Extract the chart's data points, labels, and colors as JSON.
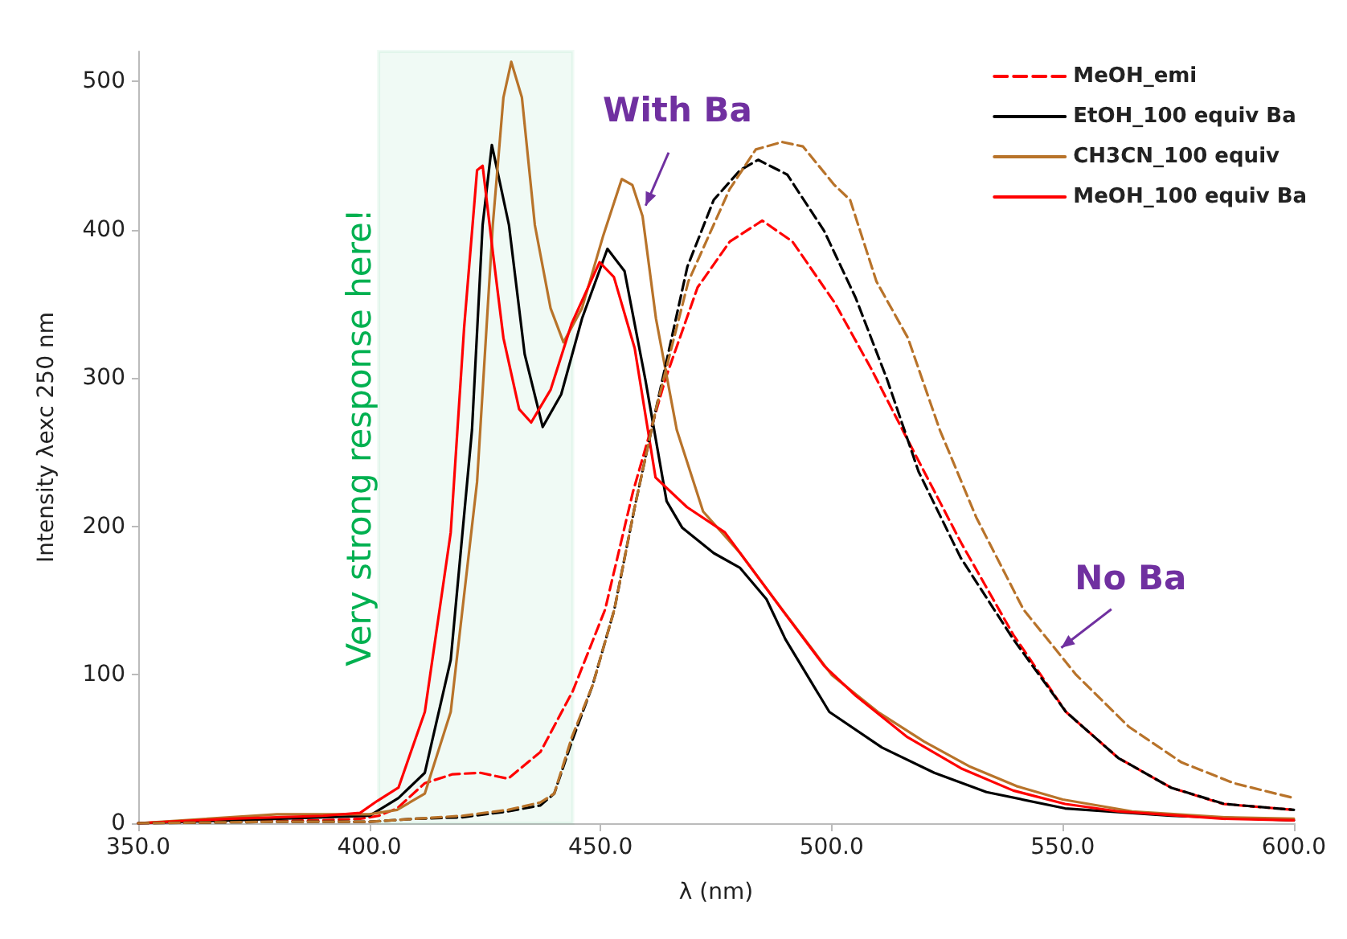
{
  "chart_data": {
    "type": "line",
    "xlabel": "λ (nm)",
    "ylabel": "Intensity λexc 250 nm",
    "xlim": [
      350,
      600
    ],
    "xticks": [
      {
        "value": 350,
        "label": "350.0"
      },
      {
        "value": 400,
        "label": "400.0"
      },
      {
        "value": 450,
        "label": "450.0"
      },
      {
        "value": 500,
        "label": "500.0"
      },
      {
        "value": 550,
        "label": "550.0"
      },
      {
        "value": 600,
        "label": "600.0"
      }
    ],
    "ylim": [
      0,
      520
    ],
    "yticks": [
      0,
      100,
      200,
      300,
      400,
      500
    ],
    "grid": false,
    "legend": "top right",
    "marker": "none",
    "series": [
      {
        "name": "MeOH_emi",
        "color": "#ff0000",
        "line_style": "dashed",
        "x": [
          350,
          370,
          390,
          398,
          402,
          406,
          412,
          418,
          424,
          430,
          437,
          444,
          451,
          457,
          464,
          471,
          478,
          485,
          491.5,
          500.6,
          508.6,
          516.5,
          528,
          539.3,
          550.7,
          562,
          573.4,
          584.7,
          600
        ],
        "values": [
          0,
          1,
          2,
          3,
          5,
          10,
          27,
          33,
          34,
          30,
          48,
          89,
          144,
          223,
          299,
          361,
          392,
          406,
          392,
          351,
          306,
          258,
          189,
          127,
          75,
          44,
          24,
          13,
          9
        ]
      },
      {
        "name": "EtOH_100 equiv Ba",
        "color": "#000000",
        "line_style": "solid",
        "x": [
          350,
          370,
          390,
          400,
          406.3,
          412,
          417.6,
          422.2,
          424.5,
          426.5,
          430.2,
          433.6,
          437.5,
          441.5,
          446,
          451.5,
          455.2,
          459.7,
          464.3,
          467.7,
          474.5,
          480.2,
          485.9,
          490,
          499.5,
          510.9,
          522.2,
          533.5,
          550.5,
          573.4,
          600
        ],
        "values": [
          0,
          2,
          4,
          5,
          17,
          34,
          110,
          265,
          403,
          457,
          403,
          316,
          267,
          289,
          340,
          387,
          372,
          299,
          217,
          199,
          182,
          172,
          151,
          124,
          75,
          51,
          34,
          21,
          10,
          5,
          2
        ]
      },
      {
        "name": "CH3CN_100 equiv",
        "color": "#b8732a",
        "line_style": "solid",
        "x": [
          350,
          365,
          380,
          400,
          406,
          412,
          417.6,
          423.3,
          426.7,
          429,
          430.7,
          433,
          435.8,
          439.2,
          442,
          446,
          450.6,
          454.6,
          456.9,
          459.1,
          462,
          466.5,
          472.2,
          480.2,
          489.3,
          500,
          510,
          520,
          530,
          540,
          550,
          565,
          585,
          600
        ],
        "values": [
          0,
          3,
          6,
          6,
          9,
          20,
          75,
          230,
          403,
          489,
          513,
          489,
          403,
          347,
          324,
          347,
          396,
          434,
          430,
          409,
          340,
          265,
          210,
          182,
          144,
          100,
          75,
          55,
          38,
          25,
          16,
          8,
          4,
          3
        ]
      },
      {
        "name": "MeOH_100 equiv Ba",
        "color": "#ff0000",
        "line_style": "solid",
        "x": [
          350,
          370,
          390,
          398,
          401.7,
          406.3,
          412,
          417.6,
          420.5,
          423.3,
          424.5,
          426.7,
          429,
          432.4,
          435,
          439.2,
          443.8,
          449.8,
          452.9,
          457.4,
          461.9,
          468.7,
          476.9,
          489,
          498.4,
          505.2,
          516.4,
          528,
          539.3,
          550.5,
          562,
          584.6,
          600
        ],
        "values": [
          0,
          3,
          5,
          7,
          15,
          24,
          75,
          196,
          334,
          440,
          443,
          385,
          327,
          279,
          270,
          292,
          337,
          378,
          368,
          320,
          233,
          213,
          196,
          145,
          106,
          86,
          58,
          37,
          22,
          13,
          8,
          3,
          2
        ]
      },
      {
        "color": "#000000",
        "line_style": "dashed",
        "x": [
          350,
          380,
          400,
          410,
          420,
          430,
          437,
          440,
          443.8,
          448.3,
          453,
          457.4,
          462,
          468.8,
          474.5,
          480.2,
          484.1,
          490.4,
          498.4,
          505.2,
          512,
          518.8,
          527.9,
          539.3,
          550.7,
          562,
          573.4,
          585,
          600
        ],
        "values": [
          0,
          1,
          1,
          3,
          4,
          8,
          12,
          20,
          55,
          93,
          144,
          213,
          279,
          375,
          420,
          440,
          447,
          437,
          399,
          354,
          299,
          237,
          179,
          124,
          75,
          44,
          24,
          13,
          9
        ]
      },
      {
        "color": "#b8732a",
        "line_style": "dashed",
        "x": [
          350,
          380,
          400,
          410,
          420,
          430,
          437,
          440,
          443.8,
          448.3,
          453,
          457.4,
          462,
          469,
          477.9,
          483.6,
          489.3,
          493.8,
          500.6,
          504,
          509.7,
          516.5,
          523.4,
          531.3,
          541.5,
          552.9,
          564.3,
          575.7,
          587,
          597.3,
          600
        ],
        "values": [
          0,
          1,
          1,
          3,
          5,
          9,
          14,
          20,
          58,
          93,
          144,
          213,
          279,
          365,
          427,
          454,
          459,
          456,
          430,
          420,
          365,
          327,
          265,
          206,
          144,
          100,
          65,
          41,
          27,
          19,
          17
        ]
      }
    ],
    "bands": [
      {
        "axis": "x",
        "from": 402,
        "to": 444,
        "label": "Very strong response here!",
        "color": "#00b050"
      }
    ],
    "annotations": [
      {
        "text": "With Ba",
        "x": 459,
        "y": 409
      },
      {
        "text": "No Ba",
        "x": 548,
        "y": 113
      }
    ]
  }
}
